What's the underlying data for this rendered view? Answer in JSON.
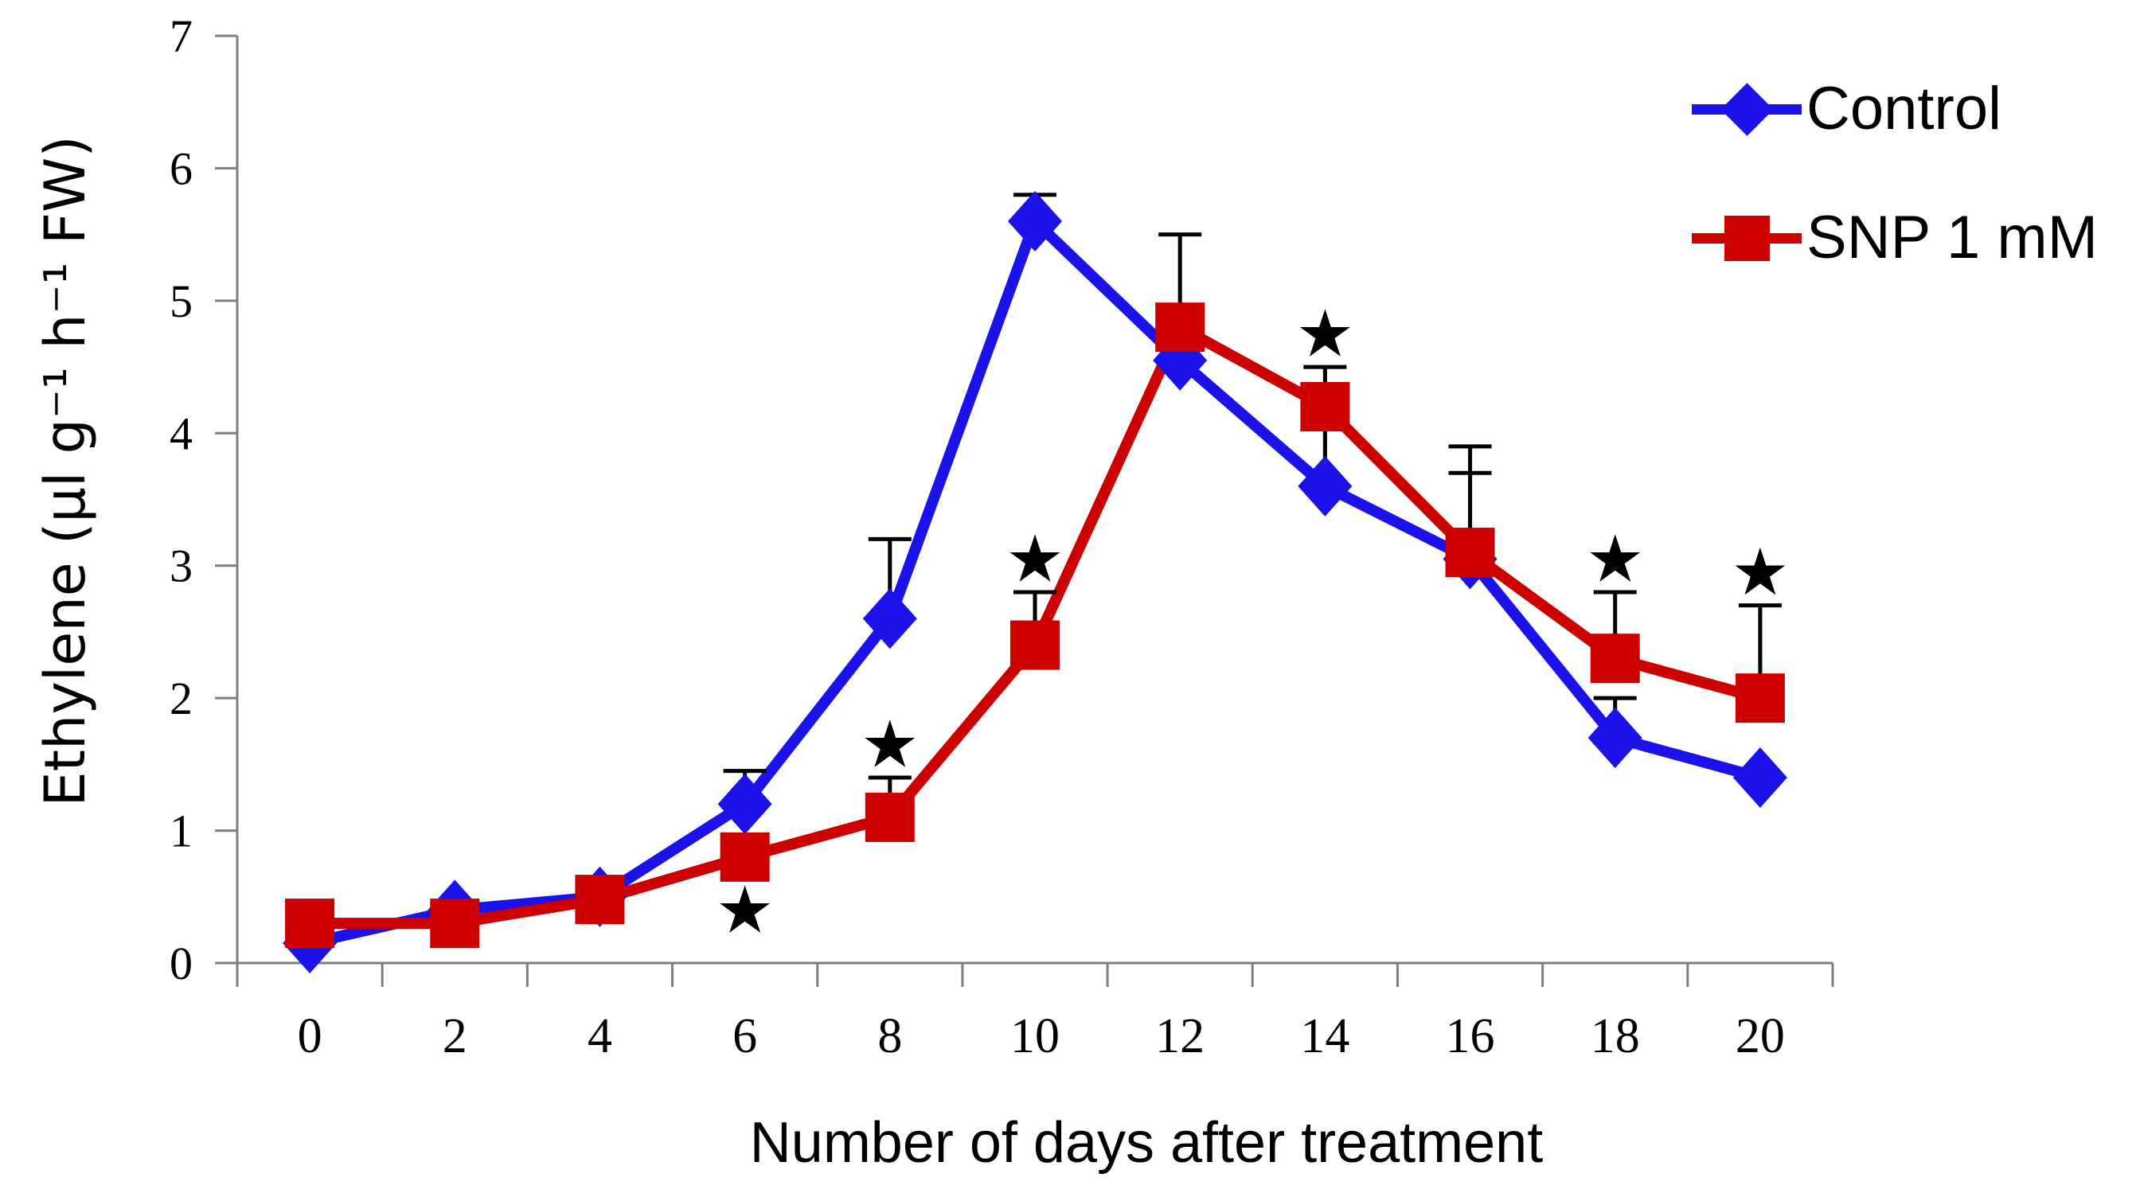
{
  "figure": {
    "background": "#ffffff"
  },
  "chart_data": {
    "type": "line",
    "title": "",
    "xlabel": "Number of days after treatment",
    "ylabel": "Ethylene (µl g⁻¹ h⁻¹ FW)",
    "x": [
      0,
      2,
      4,
      6,
      8,
      10,
      12,
      14,
      16,
      18,
      20
    ],
    "x_tick_labels": [
      "0",
      "2",
      "4",
      "6",
      "8",
      "10",
      "12",
      "14",
      "16",
      "18",
      "20"
    ],
    "ylim": [
      0,
      7
    ],
    "yticks": [
      0,
      1,
      2,
      3,
      4,
      5,
      6,
      7
    ],
    "grid": false,
    "legend_position": "top-right",
    "axis_color": "#7f7f7f",
    "tick_label_color": "#000000",
    "error_bar_color": "#000000",
    "star_color": "#000000",
    "star_glyph": "★",
    "series": [
      {
        "name": "Control",
        "color": "#1a12e8",
        "marker": "diamond",
        "values": [
          0.15,
          0.4,
          0.5,
          1.2,
          2.6,
          5.6,
          4.55,
          3.6,
          3.05,
          1.7,
          1.4
        ],
        "err_up": [
          0,
          0,
          0,
          0.25,
          0.6,
          0.2,
          0,
          0.45,
          0.65,
          0.3,
          0
        ]
      },
      {
        "name": "SNP 1 mM",
        "color": "#cc0000",
        "marker": "square",
        "values": [
          0.3,
          0.3,
          0.48,
          0.8,
          1.1,
          2.4,
          4.8,
          4.2,
          3.1,
          2.3,
          2.0
        ],
        "err_up": [
          0,
          0,
          0,
          0,
          0.3,
          0.4,
          0.7,
          0.3,
          0.8,
          0.5,
          0.7
        ]
      }
    ],
    "significance_stars": [
      {
        "day": 6,
        "y": 0.4
      },
      {
        "day": 8,
        "y": 1.65
      },
      {
        "day": 10,
        "y": 3.05
      },
      {
        "day": 14,
        "y": 4.75
      },
      {
        "day": 18,
        "y": 3.05
      },
      {
        "day": 20,
        "y": 2.95
      }
    ]
  }
}
